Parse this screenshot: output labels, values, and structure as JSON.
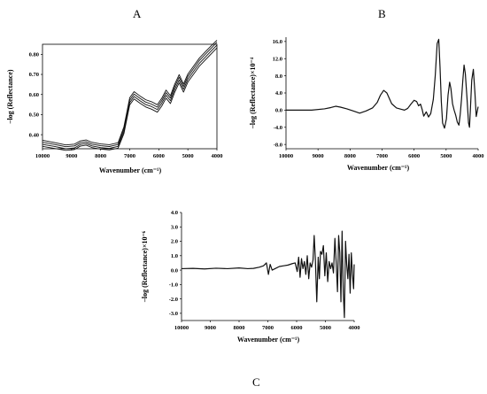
{
  "panels": {
    "a": {
      "label": "A"
    },
    "b": {
      "label": "B"
    },
    "c": {
      "label": "C"
    }
  },
  "chart_data": [
    {
      "type": "line",
      "title": "A",
      "xlabel": "Wavenumber  (cm⁻¹)",
      "ylabel": "–log (Reflectance)",
      "xlim": [
        10000,
        4000
      ],
      "ylim": [
        0.33,
        0.85
      ],
      "xticks": [
        10000,
        9000,
        8000,
        7000,
        6000,
        5000,
        4000
      ],
      "yticks": [
        0.4,
        0.5,
        0.6,
        0.7,
        0.8
      ],
      "ytick_labels": [
        "0.40",
        "0.50",
        "0.60",
        "0.70",
        "0.80"
      ],
      "grid": false,
      "series": [
        {
          "x": [
            10000,
            9600,
            9200,
            8900,
            8700,
            8500,
            8300,
            8000,
            7700,
            7400,
            7200,
            7000,
            6850,
            6650,
            6450,
            6250,
            6050,
            5900,
            5750,
            5600,
            5450,
            5300,
            5150,
            5000,
            4800,
            4600,
            4400,
            4200,
            4000
          ],
          "values": [
            0.342,
            0.332,
            0.322,
            0.326,
            0.343,
            0.348,
            0.336,
            0.328,
            0.324,
            0.333,
            0.405,
            0.548,
            0.578,
            0.557,
            0.538,
            0.527,
            0.512,
            0.542,
            0.582,
            0.555,
            0.612,
            0.658,
            0.612,
            0.662,
            0.702,
            0.742,
            0.772,
            0.802,
            0.832
          ]
        },
        {
          "x": [
            10000,
            9600,
            9200,
            8900,
            8700,
            8500,
            8300,
            8000,
            7700,
            7400,
            7200,
            7000,
            6850,
            6650,
            6450,
            6250,
            6050,
            5900,
            5750,
            5600,
            5450,
            5300,
            5150,
            5000,
            4800,
            4600,
            4400,
            4200,
            4000
          ],
          "values": [
            0.352,
            0.342,
            0.33,
            0.334,
            0.351,
            0.356,
            0.344,
            0.336,
            0.332,
            0.342,
            0.416,
            0.56,
            0.59,
            0.569,
            0.55,
            0.54,
            0.525,
            0.556,
            0.596,
            0.569,
            0.626,
            0.672,
            0.626,
            0.676,
            0.716,
            0.756,
            0.786,
            0.816,
            0.846
          ]
        },
        {
          "x": [
            10000,
            9600,
            9200,
            8900,
            8700,
            8500,
            8300,
            8000,
            7700,
            7400,
            7200,
            7000,
            6850,
            6650,
            6450,
            6250,
            6050,
            5900,
            5750,
            5600,
            5450,
            5300,
            5150,
            5000,
            4800,
            4600,
            4400,
            4200,
            4000
          ],
          "values": [
            0.362,
            0.352,
            0.34,
            0.344,
            0.36,
            0.365,
            0.353,
            0.345,
            0.341,
            0.351,
            0.428,
            0.572,
            0.602,
            0.581,
            0.562,
            0.552,
            0.537,
            0.569,
            0.609,
            0.582,
            0.64,
            0.686,
            0.64,
            0.69,
            0.73,
            0.77,
            0.8,
            0.83,
            0.86
          ]
        },
        {
          "x": [
            10000,
            9600,
            9200,
            8900,
            8700,
            8500,
            8300,
            8000,
            7700,
            7400,
            7200,
            7000,
            6850,
            6650,
            6450,
            6250,
            6050,
            5900,
            5750,
            5600,
            5450,
            5300,
            5150,
            5000,
            4800,
            4600,
            4400,
            4200,
            4000
          ],
          "values": [
            0.372,
            0.361,
            0.349,
            0.353,
            0.369,
            0.374,
            0.362,
            0.354,
            0.35,
            0.36,
            0.439,
            0.584,
            0.614,
            0.593,
            0.574,
            0.564,
            0.549,
            0.581,
            0.622,
            0.594,
            0.652,
            0.699,
            0.652,
            0.702,
            0.742,
            0.782,
            0.812,
            0.842,
            0.87
          ]
        }
      ]
    },
    {
      "type": "line",
      "title": "B",
      "xlabel": "Wavenumber  (cm⁻¹)",
      "ylabel": "–log (Reflectance)×10⁻⁴",
      "xlim": [
        10000,
        4000
      ],
      "ylim": [
        -9,
        17
      ],
      "xticks": [
        10000,
        9000,
        8000,
        7000,
        6000,
        5000,
        4000
      ],
      "xtick_labels": [
        "10000",
        "9000",
        "8000",
        "7000",
        "6000",
        "5000",
        "4000"
      ],
      "yticks": [
        -8,
        -4,
        0,
        4,
        8,
        12,
        16
      ],
      "ytick_labels": [
        "-8.0",
        "-4.0",
        "0.0",
        "4.0",
        "8.0",
        "12.0",
        "16.0"
      ],
      "grid": false,
      "series": [
        {
          "x": [
            10000,
            9200,
            8800,
            8600,
            8450,
            8300,
            8100,
            7900,
            7700,
            7500,
            7300,
            7150,
            7050,
            6950,
            6850,
            6700,
            6550,
            6400,
            6300,
            6200,
            6100,
            6000,
            5920,
            5860,
            5800,
            5750,
            5700,
            5620,
            5550,
            5480,
            5400,
            5340,
            5280,
            5230,
            5190,
            5150,
            5110,
            5050,
            4990,
            4940,
            4890,
            4850,
            4800,
            4750,
            4700,
            4650,
            4600,
            4560,
            4520,
            4480,
            4440,
            4400,
            4350,
            4300,
            4270,
            4240,
            4200,
            4150,
            4100,
            4060,
            4000
          ],
          "values": [
            0.0,
            0.0,
            0.3,
            0.6,
            0.9,
            0.7,
            0.3,
            -0.2,
            -0.7,
            -0.2,
            0.5,
            1.8,
            3.5,
            4.6,
            4.0,
            1.5,
            0.5,
            0.2,
            0.0,
            0.4,
            1.4,
            2.3,
            2.0,
            1.0,
            1.4,
            0.2,
            -1.4,
            -0.4,
            -1.6,
            -0.8,
            2.5,
            8.0,
            15.5,
            16.5,
            10.0,
            2.0,
            -3.0,
            -4.2,
            -2.0,
            3.5,
            6.5,
            5.0,
            1.5,
            0.0,
            -1.2,
            -2.8,
            -3.5,
            -1.0,
            2.5,
            6.8,
            10.5,
            8.5,
            3.0,
            -3.0,
            -4.0,
            0.5,
            7.0,
            9.5,
            4.0,
            -1.5,
            0.8
          ]
        }
      ]
    },
    {
      "type": "line",
      "title": "C",
      "xlabel": "Wavenumber  (cm⁻¹)",
      "ylabel": "–log (Reflectance)×10⁻⁶",
      "xlim": [
        10000,
        4000
      ],
      "ylim": [
        -3.5,
        4.0
      ],
      "xticks": [
        10000,
        9000,
        8000,
        7000,
        6000,
        5000,
        4000
      ],
      "xtick_labels": [
        "10000",
        "9000",
        "8000",
        "7000",
        "6000",
        "5000",
        "4000"
      ],
      "yticks": [
        -3,
        -2,
        -1,
        0,
        1,
        2,
        3,
        4
      ],
      "ytick_labels": [
        "-3.0",
        "-2.0",
        "-1.0",
        "0.0",
        "1.0",
        "2.0",
        "3.0",
        "4.0"
      ],
      "grid": false,
      "series": [
        {
          "x": [
            10000,
            9600,
            9200,
            8800,
            8400,
            8000,
            7700,
            7500,
            7300,
            7150,
            7050,
            6980,
            6920,
            6850,
            6750,
            6600,
            6450,
            6300,
            6150,
            6050,
            5980,
            5930,
            5880,
            5830,
            5780,
            5730,
            5680,
            5630,
            5580,
            5530,
            5480,
            5430,
            5390,
            5350,
            5300,
            5250,
            5210,
            5170,
            5120,
            5070,
            5020,
            4970,
            4920,
            4870,
            4820,
            4770,
            4720,
            4670,
            4620,
            4580,
            4540,
            4500,
            4460,
            4420,
            4380,
            4340,
            4300,
            4260,
            4220,
            4180,
            4140,
            4100,
            4060,
            4020,
            4000
          ],
          "values": [
            0.1,
            0.12,
            0.08,
            0.13,
            0.1,
            0.15,
            0.1,
            0.12,
            0.2,
            0.3,
            0.5,
            -0.3,
            0.4,
            0.0,
            0.1,
            0.25,
            0.3,
            0.35,
            0.45,
            0.5,
            -0.1,
            0.9,
            -0.5,
            0.8,
            0.1,
            0.6,
            -0.3,
            1.0,
            -0.6,
            0.5,
            0.2,
            0.7,
            2.4,
            0.8,
            -2.2,
            0.9,
            -0.6,
            1.3,
            1.1,
            1.7,
            -0.4,
            1.2,
            -0.8,
            0.6,
            0.1,
            0.5,
            -0.2,
            2.2,
            0.3,
            -1.5,
            2.4,
            1.2,
            -2.2,
            2.7,
            -1.5,
            -3.3,
            2.0,
            0.4,
            -0.6,
            1.1,
            -1.6,
            1.2,
            -0.3,
            -1.3,
            0.4
          ]
        }
      ]
    }
  ]
}
